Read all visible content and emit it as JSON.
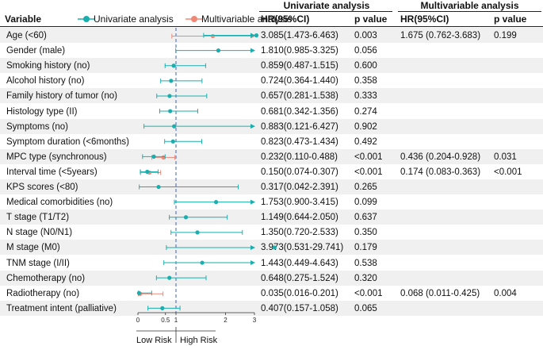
{
  "headers": {
    "variable": "Variable",
    "univariate_group": "Univariate analysis",
    "multivariable_group": "Multivariable analysis",
    "hr_uni": "HR(95%CI)",
    "p_uni": "p value",
    "hr_multi": "HR(95%CI)",
    "p_multi": "p value"
  },
  "legend": {
    "univariate": "Univariate analysis",
    "multivariable": "Multivariable analysis"
  },
  "risk_labels": {
    "low": "Low Risk",
    "high": "High Risk"
  },
  "colors": {
    "univariate": "#1aaeae",
    "multivariable": "#f08878",
    "row_shade": "#f0f0f0",
    "reference_line": "#3a62c4"
  },
  "chart_data": {
    "type": "forest",
    "x_ticks": [
      "0",
      "0.5",
      "1",
      "2",
      "3"
    ],
    "x_scale": "log",
    "reference_line": 1,
    "grid": false,
    "legend_position": "top",
    "rows": [
      {
        "variable": "Age (<60)",
        "uni_text": "3.085(1.473-6.463)",
        "uni_p": "0.003",
        "multi_text": "1.675 (0.762-3.683)",
        "multi_p": "0.199",
        "uni": [
          3.085,
          1.473,
          6.463
        ],
        "multi": [
          1.675,
          0.762,
          3.683
        ]
      },
      {
        "variable": "Gender (male)",
        "uni_text": "1.810(0.985-3.325)",
        "uni_p": "0.056",
        "multi_text": "",
        "multi_p": "",
        "uni": [
          1.81,
          0.985,
          3.325
        ],
        "multi": null
      },
      {
        "variable": "Smoking history (no)",
        "uni_text": "0.859(0.487-1.515)",
        "uni_p": "0.600",
        "multi_text": "",
        "multi_p": "",
        "uni": [
          0.859,
          0.487,
          1.515
        ],
        "multi": null
      },
      {
        "variable": "Alcohol history (no)",
        "uni_text": "0.724(0.364-1.440)",
        "uni_p": "0.358",
        "multi_text": "",
        "multi_p": "",
        "uni": [
          0.724,
          0.364,
          1.44
        ],
        "multi": null
      },
      {
        "variable": "Family history of tumor (no)",
        "uni_text": "0.657(0.281-1.538)",
        "uni_p": "0.333",
        "multi_text": "",
        "multi_p": "",
        "uni": [
          0.657,
          0.281,
          1.538
        ],
        "multi": null
      },
      {
        "variable": "Histology type (II)",
        "uni_text": "0.681(0.342-1.356)",
        "uni_p": "0.274",
        "multi_text": "",
        "multi_p": "",
        "uni": [
          0.681,
          0.342,
          1.356
        ],
        "multi": null
      },
      {
        "variable": "Symptoms (no)",
        "uni_text": "0.883(0.121-6.427)",
        "uni_p": "0.902",
        "multi_text": "",
        "multi_p": "",
        "uni": [
          0.883,
          0.121,
          6.427
        ],
        "multi": null
      },
      {
        "variable": "Symptom duration (<6months)",
        "uni_text": "0.823(0.473-1.434)",
        "uni_p": "0.492",
        "multi_text": "",
        "multi_p": "",
        "uni": [
          0.823,
          0.473,
          1.434
        ],
        "multi": null
      },
      {
        "variable": "MPC type (synchronous)",
        "uni_text": "0.232(0.110-0.488)",
        "uni_p": "<0.001",
        "multi_text": "0.436 (0.204-0.928)",
        "multi_p": "0.031",
        "uni": [
          0.232,
          0.11,
          0.488
        ],
        "multi": [
          0.436,
          0.204,
          0.928
        ]
      },
      {
        "variable": "Interval time (<5years)",
        "uni_text": "0.150(0.074-0.307)",
        "uni_p": "<0.001",
        "multi_text": "0.174 (0.083-0.363)",
        "multi_p": "<0.001",
        "uni": [
          0.15,
          0.074,
          0.307
        ],
        "multi": [
          0.174,
          0.083,
          0.363
        ]
      },
      {
        "variable": "KPS scores (<80)",
        "uni_text": "0.317(0.042-2.391)",
        "uni_p": "0.265",
        "multi_text": "",
        "multi_p": "",
        "uni": [
          0.317,
          0.042,
          2.391
        ],
        "multi": null
      },
      {
        "variable": "Medical comorbidities (no)",
        "uni_text": "1.753(0.900-3.415)",
        "uni_p": "0.099",
        "multi_text": "",
        "multi_p": "",
        "uni": [
          1.753,
          0.9,
          3.415
        ],
        "multi": null
      },
      {
        "variable": "T stage (T1/T2)",
        "uni_text": "1.149(0.644-2.050)",
        "uni_p": "0.637",
        "multi_text": "",
        "multi_p": "",
        "uni": [
          1.149,
          0.644,
          2.05
        ],
        "multi": null
      },
      {
        "variable": "N stage (N0/N1)",
        "uni_text": "1.350(0.720-2.533)",
        "uni_p": "0.350",
        "multi_text": "",
        "multi_p": "",
        "uni": [
          1.35,
          0.72,
          2.533
        ],
        "multi": null
      },
      {
        "variable": "M stage (M0)",
        "uni_text": "3.973(0.531-29.741)",
        "uni_p": "0.179",
        "multi_text": "",
        "multi_p": "",
        "uni": [
          3.973,
          0.531,
          29.741
        ],
        "multi": null
      },
      {
        "variable": "TNM stage (I/II)",
        "uni_text": "1.443(0.449-4.643)",
        "uni_p": "0.538",
        "multi_text": "",
        "multi_p": "",
        "uni": [
          1.443,
          0.449,
          4.643
        ],
        "multi": null
      },
      {
        "variable": "Chemotherapy (no)",
        "uni_text": "0.648(0.275-1.524)",
        "uni_p": "0.320",
        "multi_text": "",
        "multi_p": "",
        "uni": [
          0.648,
          0.275,
          1.524
        ],
        "multi": null
      },
      {
        "variable": "Radiotherapy (no)",
        "uni_text": "0.035(0.016-0.201)",
        "uni_p": "<0.001",
        "multi_text": "0.068 (0.011-0.425)",
        "multi_p": "0.004",
        "uni": [
          0.035,
          0.016,
          0.201
        ],
        "multi": [
          0.068,
          0.011,
          0.425
        ]
      },
      {
        "variable": "Treatment intent (palliative)",
        "uni_text": "0.407(0.157-1.058)",
        "uni_p": "0.065",
        "multi_text": "",
        "multi_p": "",
        "uni": [
          0.407,
          0.157,
          1.058
        ],
        "multi": null
      }
    ]
  }
}
